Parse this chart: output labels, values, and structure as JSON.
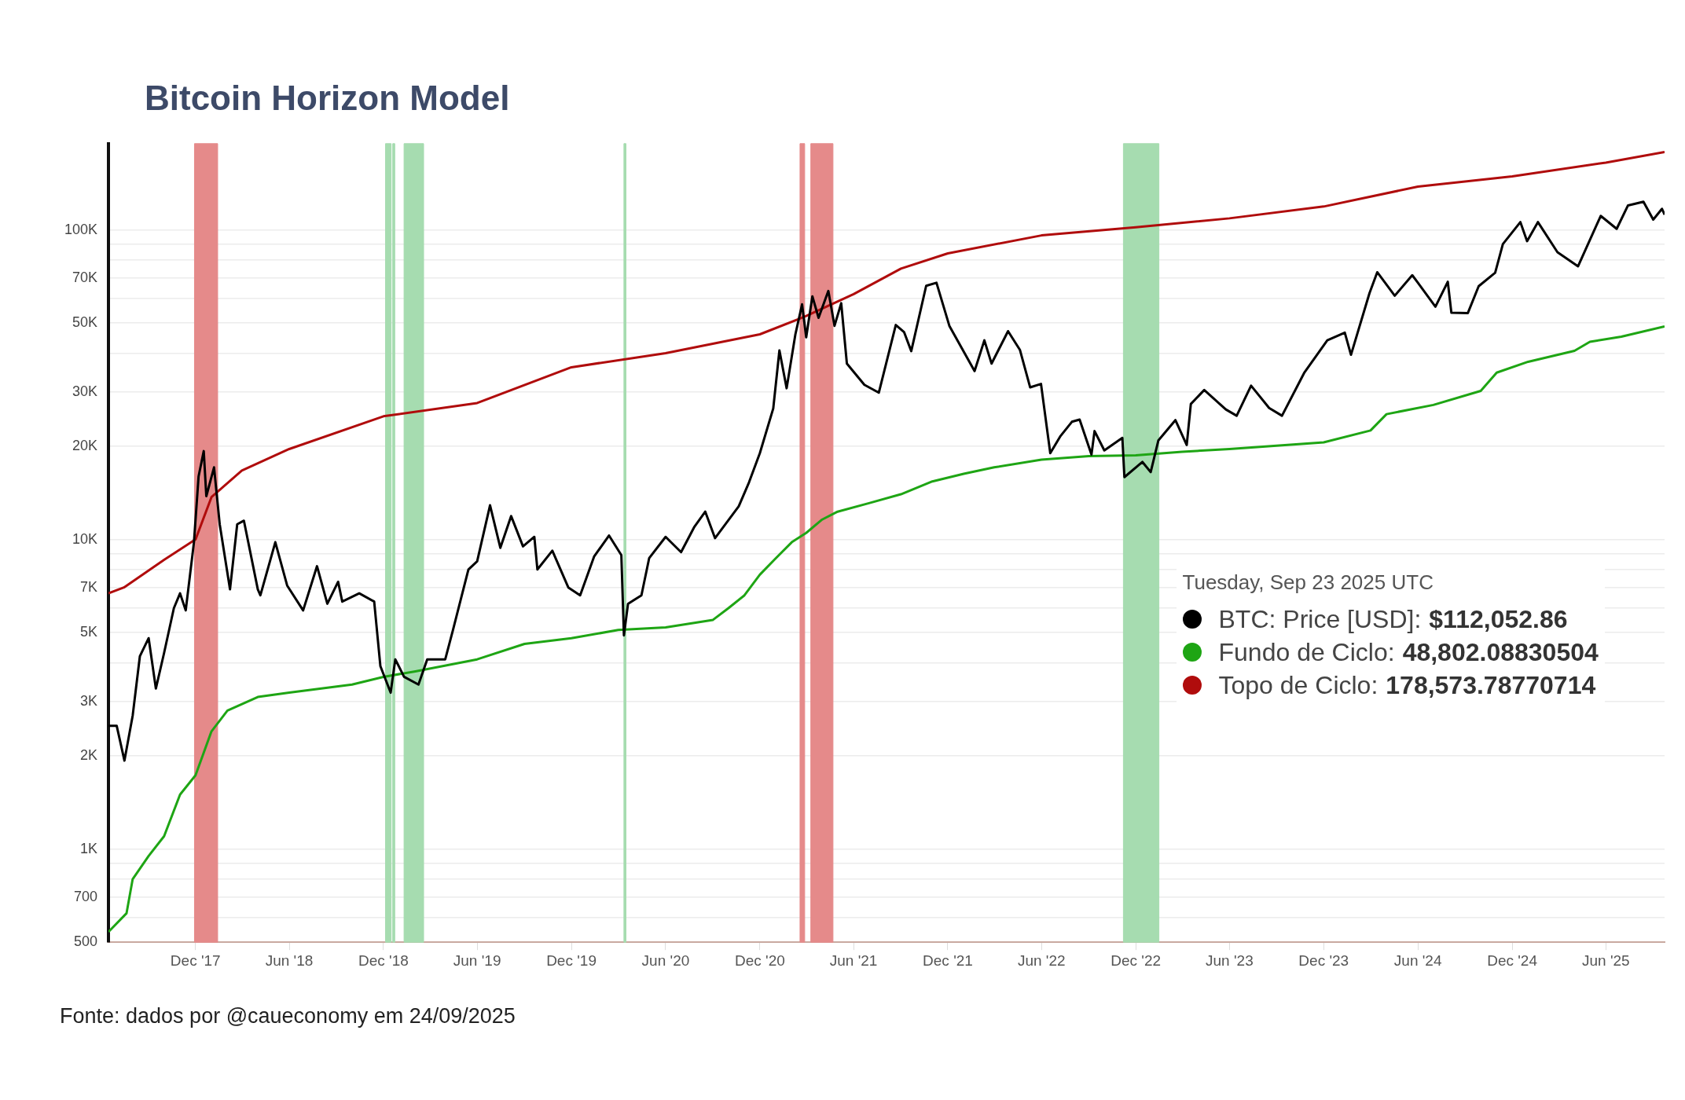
{
  "chart_data": {
    "type": "line",
    "title": "Bitcoin Horizon Model",
    "legend_title": "Tuesday, Sep 23 2025 UTC",
    "log": true,
    "grid": "y",
    "legend": "right",
    "marker": "none",
    "line_style": "solid",
    "xlim": [
      "2017-06-15",
      "2025-09-23"
    ],
    "xticks": [
      {
        "value": "2017-12-01",
        "label": "Dec '17"
      },
      {
        "value": "2018-06-01",
        "label": "Jun '18"
      },
      {
        "value": "2018-12-01",
        "label": "Dec '18"
      },
      {
        "value": "2019-06-01",
        "label": "Jun '19"
      },
      {
        "value": "2019-12-01",
        "label": "Dec '19"
      },
      {
        "value": "2020-06-01",
        "label": "Jun '20"
      },
      {
        "value": "2020-12-01",
        "label": "Dec '20"
      },
      {
        "value": "2021-06-01",
        "label": "Jun '21"
      },
      {
        "value": "2021-12-01",
        "label": "Dec '21"
      },
      {
        "value": "2022-06-01",
        "label": "Jun '22"
      },
      {
        "value": "2022-12-01",
        "label": "Dec '22"
      },
      {
        "value": "2023-06-01",
        "label": "Jun '23"
      },
      {
        "value": "2023-12-01",
        "label": "Dec '23"
      },
      {
        "value": "2024-06-01",
        "label": "Jun '24"
      },
      {
        "value": "2024-12-01",
        "label": "Dec '24"
      },
      {
        "value": "2025-06-01",
        "label": "Jun '25"
      }
    ],
    "ylim": [
      500,
      190000
    ],
    "yticks": [
      500,
      {
        "value": 600,
        "label": null
      },
      700,
      {
        "value": 800,
        "label": null
      },
      {
        "value": 900,
        "label": null
      },
      {
        "value": 1000,
        "label": "1K"
      },
      {
        "value": 2000,
        "label": "2K"
      },
      {
        "value": 3000,
        "label": "3K"
      },
      {
        "value": 4000,
        "label": null
      },
      {
        "value": 5000,
        "label": "5K"
      },
      {
        "value": 6000,
        "label": null
      },
      {
        "value": 7000,
        "label": "7K"
      },
      {
        "value": 8000,
        "label": null
      },
      {
        "value": 9000,
        "label": null
      },
      {
        "value": 10000,
        "label": "10K"
      },
      {
        "value": 20000,
        "label": "20K"
      },
      {
        "value": 30000,
        "label": "30K"
      },
      {
        "value": 40000,
        "label": null
      },
      {
        "value": 50000,
        "label": "50K"
      },
      {
        "value": 60000,
        "label": null
      },
      {
        "value": 70000,
        "label": "70K"
      },
      {
        "value": 80000,
        "label": null
      },
      {
        "value": 90000,
        "label": null
      },
      {
        "value": 100000,
        "label": "100K"
      }
    ],
    "bands": [
      {
        "axis": "x",
        "from": "2017-11-29",
        "to": "2018-01-13",
        "color": "#e58a8a"
      },
      {
        "axis": "x",
        "from": "2018-12-05",
        "to": "2018-12-16",
        "color": "#a6dcb0"
      },
      {
        "axis": "x",
        "from": "2018-12-19",
        "to": "2018-12-23",
        "color": "#a6dcb0"
      },
      {
        "axis": "x",
        "from": "2019-01-10",
        "to": "2019-02-17",
        "color": "#a6dcb0"
      },
      {
        "axis": "x",
        "from": "2020-03-12",
        "to": "2020-03-16",
        "color": "#a6dcb0"
      },
      {
        "axis": "x",
        "from": "2021-02-17",
        "to": "2021-02-26",
        "color": "#e58a8a"
      },
      {
        "axis": "x",
        "from": "2021-03-10",
        "to": "2021-04-22",
        "color": "#e58a8a"
      },
      {
        "axis": "x",
        "from": "2022-11-07",
        "to": "2023-01-15",
        "color": "#a6dcb0"
      }
    ],
    "series": [
      {
        "name": "BTC: Price [USD]:",
        "color": "#000000",
        "x": [
          "2017-06-15",
          "2017-07-01",
          "2017-07-16",
          "2017-08-01",
          "2017-08-15",
          "2017-09-01",
          "2017-09-15",
          "2017-10-01",
          "2017-10-20",
          "2017-11-01",
          "2017-11-12",
          "2017-11-28",
          "2017-12-07",
          "2017-12-17",
          "2017-12-22",
          "2018-01-06",
          "2018-01-17",
          "2018-02-06",
          "2018-02-20",
          "2018-03-05",
          "2018-04-01",
          "2018-04-06",
          "2018-05-05",
          "2018-05-28",
          "2018-06-28",
          "2018-07-25",
          "2018-08-14",
          "2018-09-04",
          "2018-09-12",
          "2018-10-15",
          "2018-11-13",
          "2018-11-25",
          "2018-12-15",
          "2018-12-24",
          "2019-01-10",
          "2019-02-07",
          "2019-02-24",
          "2019-03-31",
          "2019-04-15",
          "2019-05-15",
          "2019-06-01",
          "2019-06-26",
          "2019-07-16",
          "2019-08-06",
          "2019-08-29",
          "2019-09-20",
          "2019-09-26",
          "2019-10-25",
          "2019-11-25",
          "2019-12-18",
          "2020-01-14",
          "2020-02-12",
          "2020-03-07",
          "2020-03-12",
          "2020-03-20",
          "2020-04-15",
          "2020-04-30",
          "2020-06-01",
          "2020-07-01",
          "2020-07-27",
          "2020-08-17",
          "2020-09-05",
          "2020-10-21",
          "2020-11-10",
          "2020-12-01",
          "2020-12-27",
          "2021-01-08",
          "2021-01-22",
          "2021-02-08",
          "2021-02-21",
          "2021-03-01",
          "2021-03-13",
          "2021-03-25",
          "2021-04-13",
          "2021-04-25",
          "2021-05-08",
          "2021-05-19",
          "2021-06-22",
          "2021-07-20",
          "2021-08-22",
          "2021-09-07",
          "2021-09-21",
          "2021-10-20",
          "2021-11-09",
          "2021-12-04",
          "2022-01-22",
          "2022-02-10",
          "2022-02-24",
          "2022-03-28",
          "2022-04-20",
          "2022-05-10",
          "2022-05-31",
          "2022-06-18",
          "2022-07-08",
          "2022-07-30",
          "2022-08-14",
          "2022-09-06",
          "2022-09-12",
          "2022-10-01",
          "2022-11-05",
          "2022-11-09",
          "2022-12-14",
          "2022-12-30",
          "2023-01-14",
          "2023-02-16",
          "2023-03-10",
          "2023-03-18",
          "2023-04-13",
          "2023-05-25",
          "2023-06-15",
          "2023-07-13",
          "2023-08-17",
          "2023-09-11",
          "2023-10-24",
          "2023-12-08",
          "2024-01-11",
          "2024-01-23",
          "2024-02-28",
          "2024-03-14",
          "2024-04-17",
          "2024-05-21",
          "2024-06-01",
          "2024-07-05",
          "2024-07-29",
          "2024-08-05",
          "2024-09-06",
          "2024-09-27",
          "2024-10-29",
          "2024-11-13",
          "2024-12-17",
          "2024-12-30",
          "2025-01-20",
          "2025-02-27",
          "2025-04-08",
          "2025-05-22",
          "2025-06-22",
          "2025-07-14",
          "2025-08-13",
          "2025-09-01",
          "2025-09-18",
          "2025-09-23"
        ],
        "values": [
          2500,
          2500,
          1930,
          2700,
          4200,
          4800,
          3300,
          4300,
          6000,
          6700,
          5900,
          9800,
          16000,
          19300,
          13800,
          17100,
          11200,
          6900,
          11200,
          11500,
          6900,
          6600,
          9800,
          7100,
          5900,
          8200,
          6200,
          7300,
          6300,
          6700,
          6300,
          3900,
          3200,
          4100,
          3600,
          3400,
          4100,
          4100,
          5100,
          8000,
          8500,
          12900,
          9400,
          11900,
          9500,
          10200,
          8000,
          9200,
          7000,
          6600,
          8800,
          10300,
          8900,
          4900,
          6200,
          6600,
          8700,
          10200,
          9100,
          11000,
          12300,
          10100,
          12800,
          15300,
          19000,
          26500,
          40800,
          30800,
          46000,
          57500,
          45000,
          61000,
          52000,
          63500,
          49000,
          58000,
          37000,
          31600,
          29800,
          49300,
          46800,
          40600,
          66000,
          67500,
          49000,
          35000,
          44000,
          37000,
          47100,
          41000,
          31000,
          31800,
          19000,
          21600,
          24000,
          24400,
          18800,
          22400,
          19400,
          21300,
          15900,
          17800,
          16500,
          20900,
          24300,
          20200,
          27400,
          30400,
          26300,
          25100,
          31400,
          26600,
          25100,
          34500,
          44000,
          46600,
          39500,
          62500,
          73000,
          61300,
          71400,
          67500,
          56500,
          68000,
          54000,
          53900,
          65800,
          72700,
          90000,
          106000,
          92000,
          106000,
          84700,
          76300,
          111000,
          100800,
          120000,
          123300,
          108000,
          117000,
          112052.86
        ]
      },
      {
        "name": "Fundo de Ciclo:",
        "color": "#1ea514",
        "x": [
          "2017-06-15",
          "2017-07-20",
          "2017-08-01",
          "2017-09-01",
          "2017-10-01",
          "2017-11-01",
          "2017-12-01",
          "2018-01-01",
          "2018-02-01",
          "2018-04-01",
          "2018-06-01",
          "2018-10-01",
          "2018-12-01",
          "2019-02-01",
          "2019-06-01",
          "2019-09-01",
          "2019-12-01",
          "2020-03-01",
          "2020-06-01",
          "2020-09-01",
          "2020-10-01",
          "2020-11-01",
          "2020-12-01",
          "2021-01-01",
          "2021-02-01",
          "2021-03-01",
          "2021-04-01",
          "2021-05-01",
          "2021-07-01",
          "2021-09-01",
          "2021-11-01",
          "2022-01-01",
          "2022-03-01",
          "2022-06-01",
          "2022-09-01",
          "2022-12-01",
          "2023-03-01",
          "2023-06-01",
          "2023-12-01",
          "2024-03-01",
          "2024-04-01",
          "2024-07-01",
          "2024-10-01",
          "2024-11-01",
          "2025-01-01",
          "2025-04-01",
          "2025-05-01",
          "2025-07-01",
          "2025-09-23"
        ],
        "values": [
          540,
          620,
          800,
          950,
          1100,
          1500,
          1730,
          2400,
          2800,
          3100,
          3200,
          3400,
          3600,
          3750,
          4100,
          4600,
          4800,
          5100,
          5200,
          5500,
          6000,
          6600,
          7700,
          8700,
          9800,
          10500,
          11600,
          12300,
          13100,
          14000,
          15400,
          16300,
          17100,
          18100,
          18600,
          18700,
          19200,
          19600,
          20600,
          22500,
          25400,
          27200,
          30200,
          34600,
          37500,
          40700,
          43500,
          45200,
          48802.09
        ]
      },
      {
        "name": "Topo de Ciclo:",
        "color": "#b00c0c",
        "x": [
          "2017-06-15",
          "2017-07-15",
          "2017-10-01",
          "2017-12-01",
          "2018-01-01",
          "2018-03-01",
          "2018-06-01",
          "2018-12-01",
          "2019-06-01",
          "2019-12-01",
          "2020-06-01",
          "2020-12-01",
          "2021-03-01",
          "2021-06-01",
          "2021-09-01",
          "2021-12-01",
          "2022-06-01",
          "2022-12-01",
          "2023-06-01",
          "2023-12-01",
          "2024-06-01",
          "2024-12-01",
          "2025-06-01",
          "2025-09-23"
        ],
        "values": [
          6700,
          7000,
          8600,
          10000,
          13700,
          16700,
          19600,
          25000,
          27600,
          36000,
          40000,
          46000,
          52700,
          62000,
          75000,
          84000,
          96000,
          102000,
          109000,
          119000,
          138000,
          149000,
          165000,
          178573.79
        ]
      }
    ],
    "annotations": [
      "$112,052.86",
      "48,802.08830504",
      "178,573.78770714",
      "Fonte: dados por @caueconomy em 24/09/2025"
    ]
  }
}
